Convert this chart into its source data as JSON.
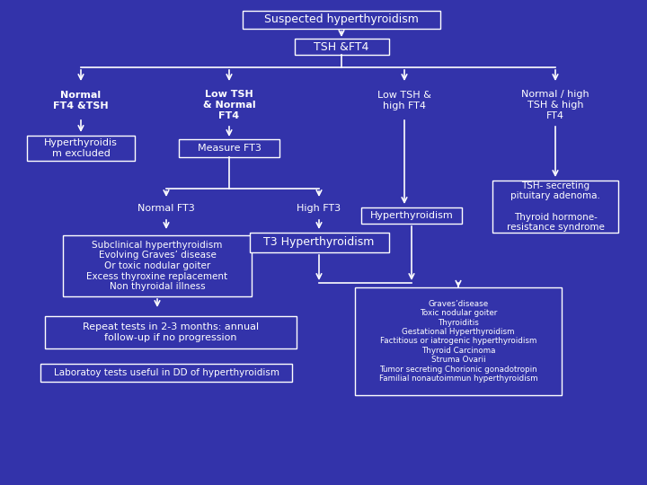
{
  "bg_color": "#3333AA",
  "box_edge": "#FFFFFF",
  "text_color": "#FFFFFF",
  "arrow_color": "#FFFFFF",
  "title": "Suspected hyperthyroidism",
  "node2": "TSH &FT4",
  "branch1_label": "Normal\nFT4 &TSH",
  "branch2_label": "Low TSH\n& Normal\nFT4",
  "branch3_label": "Low TSH &\nhigh FT4",
  "branch4_label": "Normal / high\nTSH & high\nFT4",
  "box_hyper_excluded": "Hyperthyroidis\nm excluded",
  "box_measure_ft3": "Measure FT3",
  "label_normal_ft3": "Normal FT3",
  "label_high_ft3": "High FT3",
  "box_hyperthyroidism": "Hyperthyroidism",
  "box_tsh_secreting": "TSH- secreting\npituitary adenoma.\n\nThyroid hormone-\nresistance syndrome",
  "box_t3_hyper": "T3 Hyperthyroidism",
  "box_subclinical": "Subclinical hyperthyroidism\nEvolving Graves’ disease\nOr toxic nodular goiter\nExcess thyroxine replacement\nNon thyroidal illness",
  "box_repeat": "Repeat tests in 2-3 months: annual\nfollow-up if no progression",
  "box_graves": "Graves’disease\nToxic nodular goiter\nThyroiditis\nGestational Hyperthyroidism\nFactitious or iatrogenic hyperthyroidism\nThyroid Carcinoma\nStruma Ovarii\nTumor secreting Chorionic gonadotropin\nFamilial nonautoimmun hyperthyroidism",
  "box_lab": "Laboratoy tests useful in DD of hyperthyroidism"
}
